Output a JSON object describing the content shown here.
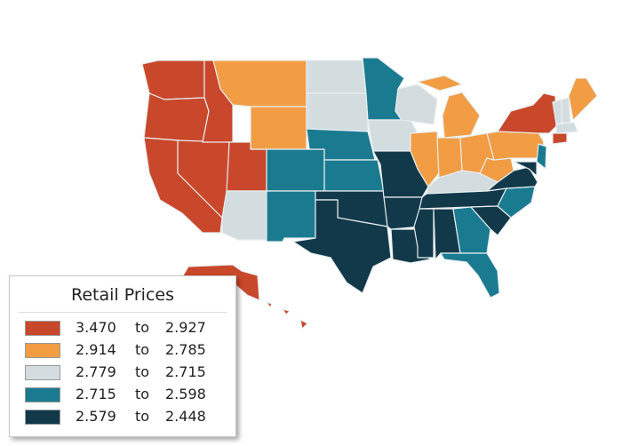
{
  "legend": {
    "title": "Retail Prices",
    "entries": [
      {
        "from": "3.470",
        "word": "to",
        "to": "2.927",
        "color": "#c9472a"
      },
      {
        "from": "2.914",
        "word": "to",
        "to": "2.785",
        "color": "#f29d44"
      },
      {
        "from": "2.779",
        "word": "to",
        "to": "2.715",
        "color": "#d3dcdf"
      },
      {
        "from": "2.715",
        "word": "to",
        "to": "2.598",
        "color": "#1a7b90"
      },
      {
        "from": "2.579",
        "word": "to",
        "to": "2.448",
        "color": "#11394a"
      }
    ]
  }
}
